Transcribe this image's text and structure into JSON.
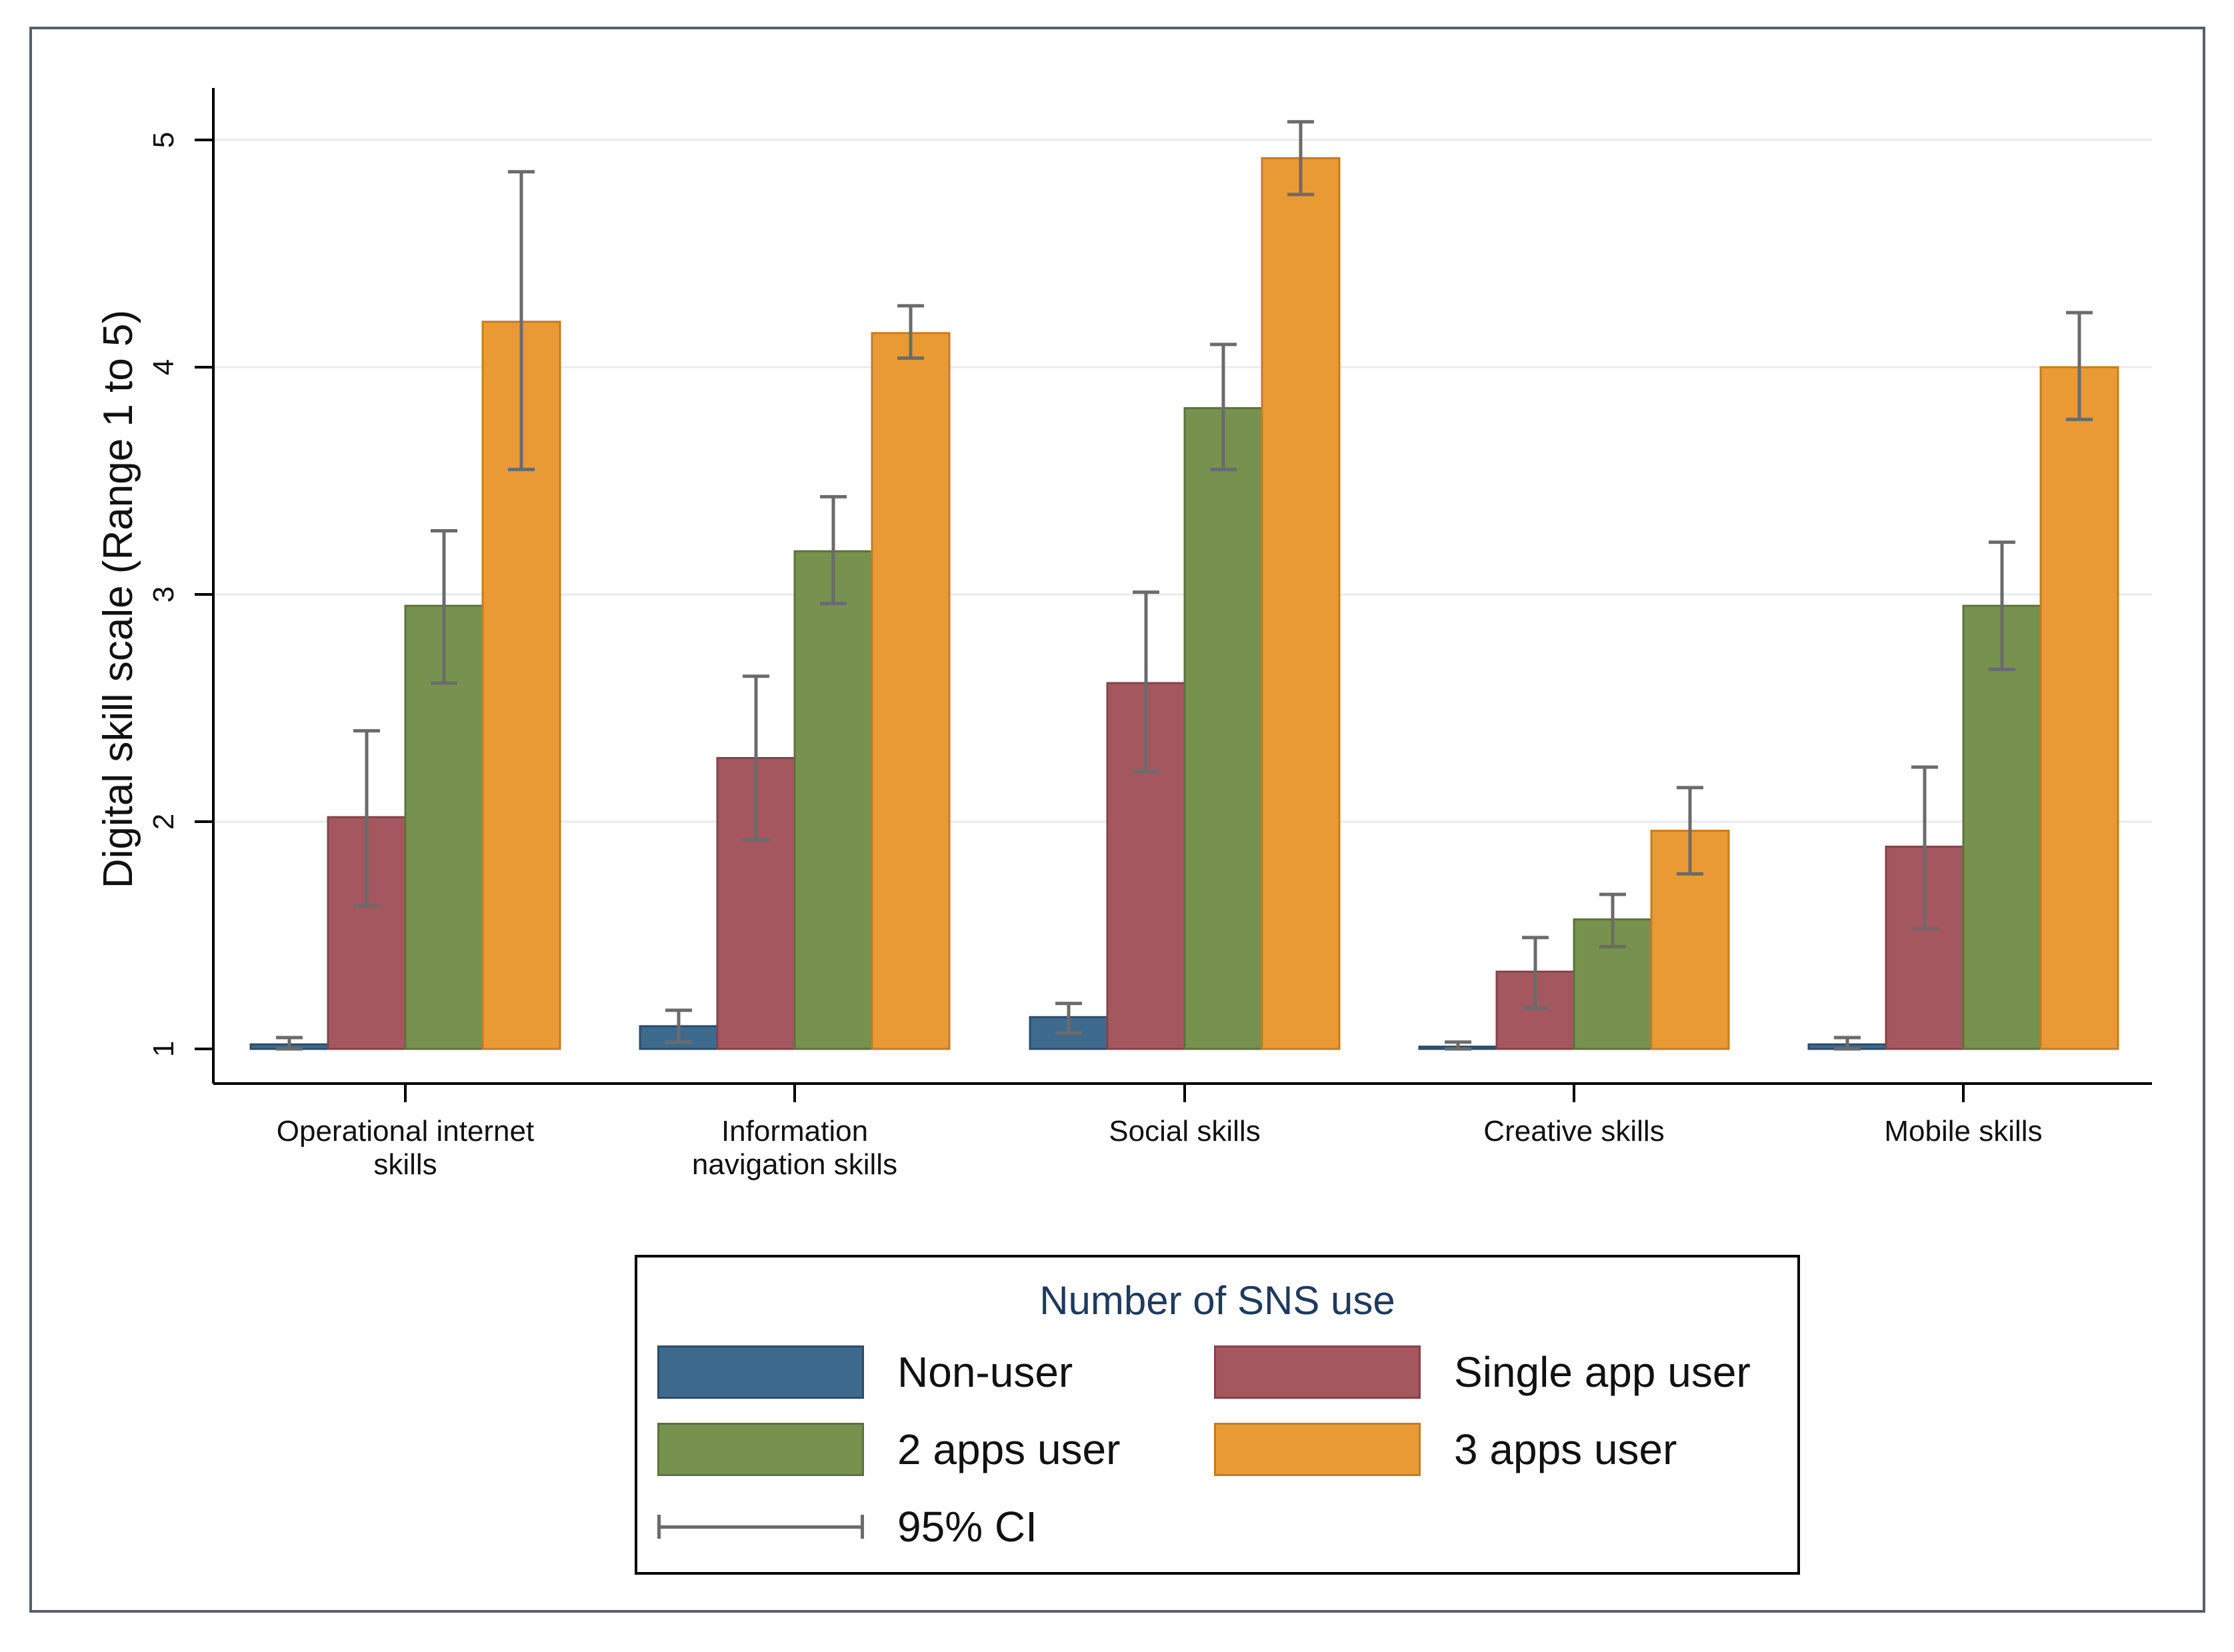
{
  "chart_data": {
    "type": "bar",
    "title": "",
    "xlabel": "",
    "ylabel": "Digital skill scale (Range 1 to 5)",
    "ylim": [
      1,
      5.2
    ],
    "yticks": [
      1,
      2,
      3,
      4,
      5
    ],
    "grid": true,
    "legend_title": "Number of SNS use",
    "legend_position": "bottom",
    "ci_label": "95% CI",
    "categories": [
      [
        "Operational internet",
        "skills"
      ],
      [
        "Information",
        "navigation skills"
      ],
      [
        "Social skills"
      ],
      [
        "Creative skills"
      ],
      [
        "Mobile skills"
      ]
    ],
    "series": [
      {
        "name": "Non-user",
        "color": "#3e6a8e",
        "values": [
          1.02,
          1.1,
          1.14,
          1.01,
          1.02
        ],
        "ci_low": [
          1.0,
          1.03,
          1.07,
          1.0,
          1.0
        ],
        "ci_high": [
          1.05,
          1.17,
          1.2,
          1.03,
          1.05
        ]
      },
      {
        "name": "Single app user",
        "color": "#a5575f",
        "values": [
          2.02,
          2.28,
          2.61,
          1.34,
          1.89
        ],
        "ci_low": [
          1.63,
          1.92,
          2.22,
          1.18,
          1.53
        ],
        "ci_high": [
          2.4,
          2.64,
          3.01,
          1.49,
          2.24
        ]
      },
      {
        "name": "2 apps user",
        "color": "#77914f",
        "values": [
          2.95,
          3.19,
          3.82,
          1.57,
          2.95
        ],
        "ci_low": [
          2.61,
          2.96,
          3.55,
          1.45,
          2.67
        ],
        "ci_high": [
          3.28,
          3.43,
          4.1,
          1.68,
          3.23
        ]
      },
      {
        "name": "3 apps user",
        "color": "#e99a34",
        "values": [
          4.2,
          4.15,
          4.92,
          1.96,
          4.0
        ],
        "ci_low": [
          3.55,
          4.04,
          4.76,
          1.77,
          3.77
        ],
        "ci_high": [
          4.86,
          4.27,
          5.08,
          2.15,
          4.24
        ]
      }
    ]
  }
}
